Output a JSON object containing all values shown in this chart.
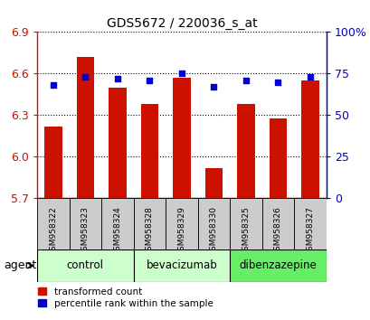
{
  "title": "GDS5672 / 220036_s_at",
  "samples": [
    "GSM958322",
    "GSM958323",
    "GSM958324",
    "GSM958328",
    "GSM958329",
    "GSM958330",
    "GSM958325",
    "GSM958326",
    "GSM958327"
  ],
  "transformed_count": [
    6.22,
    6.72,
    6.5,
    6.38,
    6.57,
    5.92,
    6.38,
    6.28,
    6.55
  ],
  "percentile_rank": [
    68,
    73,
    72,
    71,
    75,
    67,
    71,
    70,
    73
  ],
  "y_min": 5.7,
  "y_max": 6.9,
  "y_ticks": [
    5.7,
    6.0,
    6.3,
    6.6,
    6.9
  ],
  "right_y_ticks": [
    0,
    25,
    50,
    75,
    100
  ],
  "right_y_labels": [
    "0",
    "25",
    "50",
    "75",
    "100%"
  ],
  "groups": [
    {
      "name": "control",
      "color": "#ccffcc",
      "indices": [
        0,
        1,
        2
      ]
    },
    {
      "name": "bevacizumab",
      "color": "#ccffcc",
      "indices": [
        3,
        4,
        5
      ]
    },
    {
      "name": "dibenzazepine",
      "color": "#66ee66",
      "indices": [
        6,
        7,
        8
      ]
    }
  ],
  "bar_color": "#cc1100",
  "dot_color": "#0000cc",
  "bar_width": 0.55,
  "background_color": "#ffffff",
  "left_tick_color": "#cc1100",
  "right_tick_color": "#0000cc",
  "legend_bar_label": "transformed count",
  "legend_dot_label": "percentile rank within the sample",
  "agent_label": "agent",
  "tick_label_bg": "#cccccc"
}
